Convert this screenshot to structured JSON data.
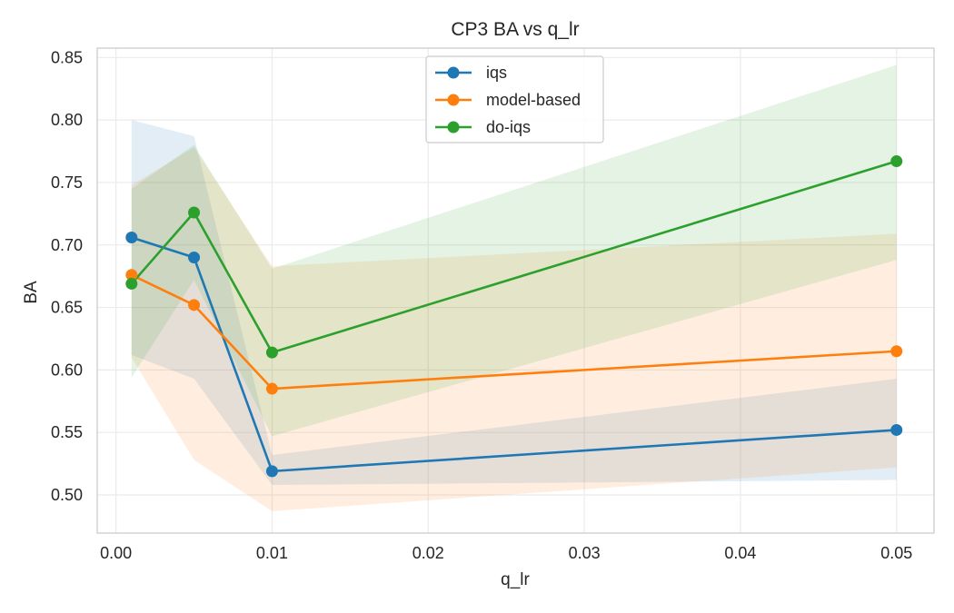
{
  "chart_data": {
    "type": "line",
    "title": "CP3 BA vs q_lr",
    "xlabel": "q_lr",
    "ylabel": "BA",
    "xlim": [
      -0.0012,
      0.0524
    ],
    "ylim": [
      0.4695,
      0.8575
    ],
    "xticks": [
      0.0,
      0.01,
      0.02,
      0.03,
      0.04,
      0.05
    ],
    "xtick_labels": [
      "0.00",
      "0.01",
      "0.02",
      "0.03",
      "0.04",
      "0.05"
    ],
    "yticks": [
      0.5,
      0.55,
      0.6,
      0.65,
      0.7,
      0.75,
      0.8,
      0.85
    ],
    "ytick_labels": [
      "0.50",
      "0.55",
      "0.60",
      "0.65",
      "0.70",
      "0.75",
      "0.80",
      "0.85"
    ],
    "grid": true,
    "legend_position": "top-center",
    "x": [
      0.001,
      0.005,
      0.01,
      0.05
    ],
    "series": [
      {
        "name": "iqs",
        "color": "#1f77b4",
        "values": [
          0.706,
          0.69,
          0.519,
          0.552
        ],
        "lower": [
          0.612,
          0.593,
          0.508,
          0.512
        ],
        "upper": [
          0.8,
          0.787,
          0.532,
          0.593
        ]
      },
      {
        "name": "model-based",
        "color": "#ff7f0e",
        "values": [
          0.676,
          0.652,
          0.585,
          0.615
        ],
        "lower": [
          0.61,
          0.528,
          0.487,
          0.522
        ],
        "upper": [
          0.748,
          0.778,
          0.683,
          0.709
        ]
      },
      {
        "name": "do-iqs",
        "color": "#2ca02c",
        "values": [
          0.669,
          0.726,
          0.614,
          0.767
        ],
        "lower": [
          0.594,
          0.672,
          0.547,
          0.688
        ],
        "upper": [
          0.745,
          0.78,
          0.681,
          0.844
        ]
      }
    ]
  }
}
